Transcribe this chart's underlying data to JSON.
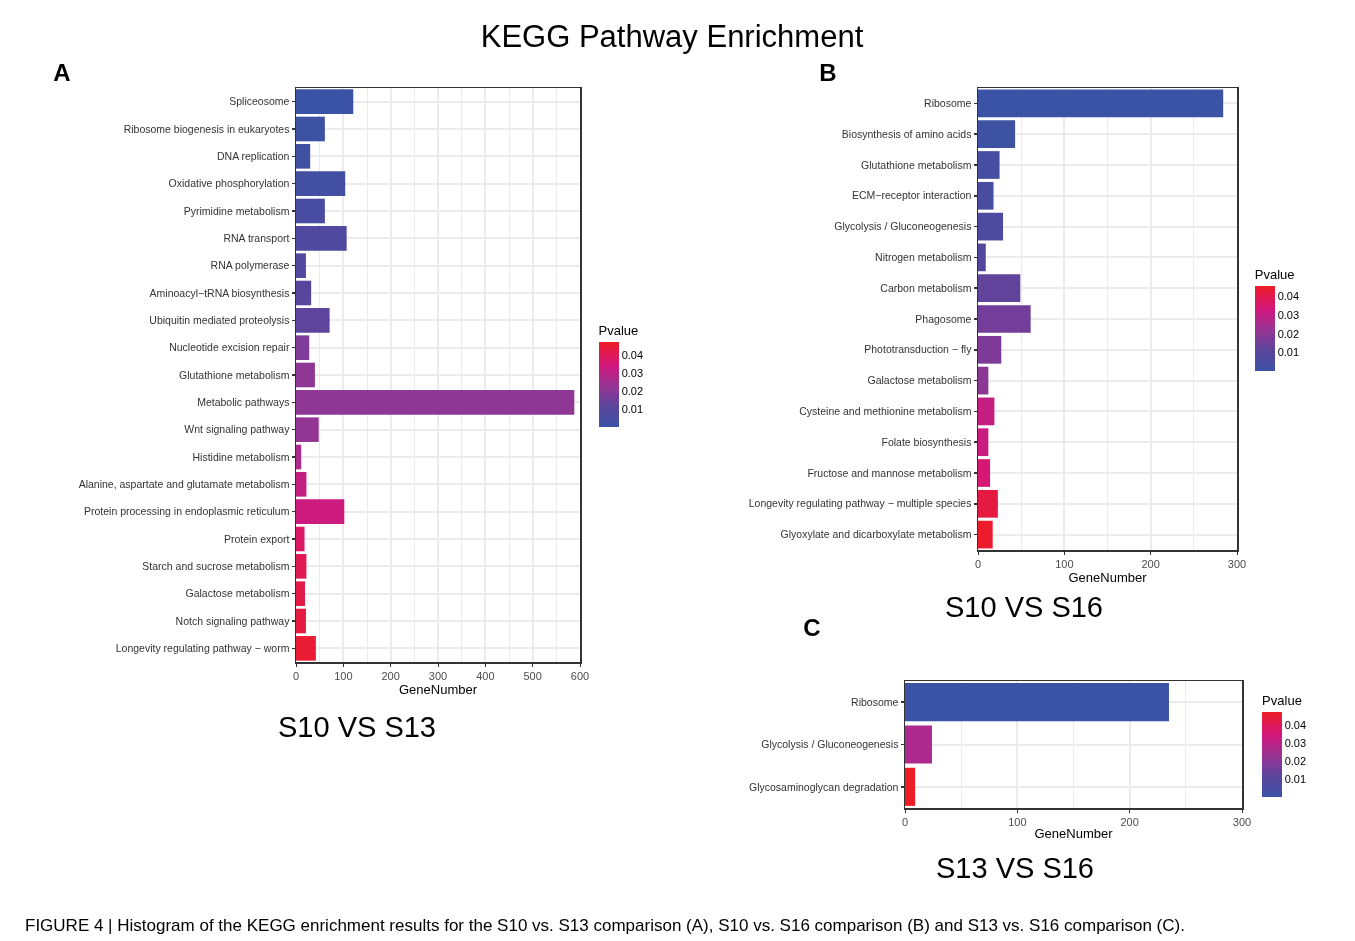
{
  "chart_data": [
    {
      "type": "bar",
      "orientation": "horizontal",
      "title": "KEGG Pathway Enrichment",
      "subtitle": "S10 VS S13",
      "annotations": [
        "A"
      ],
      "categories": [
        "Spliceosome",
        "Ribosome biogenesis in eukaryotes",
        "DNA replication",
        "Oxidative phosphorylation",
        "Pyrimidine metabolism",
        "RNA transport",
        "RNA polymerase",
        "Aminoacyl−tRNA biosynthesis",
        "Ubiquitin mediated proteolysis",
        "Nucleotide excision repair",
        "Glutathione metabolism",
        "Metabolic pathways",
        "Wnt signaling pathway",
        "Histidine metabolism",
        "Alanine, aspartate and glutamate metabolism",
        "Protein processing in endoplasmic reticulum",
        "Protein export",
        "Starch and sucrose metabolism",
        "Galactose metabolism",
        "Notch signaling pathway",
        "Longevity regulating pathway − worm"
      ],
      "values": [
        121,
        61,
        30,
        104,
        61,
        107,
        21,
        32,
        71,
        28,
        40,
        588,
        48,
        11,
        22,
        102,
        18,
        22,
        19,
        21,
        42
      ],
      "cvalues": [
        0.0,
        0.001,
        0.002,
        0.003,
        0.005,
        0.007,
        0.008,
        0.01,
        0.012,
        0.018,
        0.021,
        0.021,
        0.022,
        0.027,
        0.031,
        0.033,
        0.038,
        0.04,
        0.042,
        0.043,
        0.045
      ],
      "clabel": "Pvalue",
      "clim": [
        0,
        0.047
      ],
      "cticks": [
        0.01,
        0.02,
        0.03,
        0.04
      ],
      "xlabel": "GeneNumber",
      "xlim": [
        0,
        600
      ],
      "xticks": [
        0,
        100,
        200,
        300,
        400,
        500,
        600
      ],
      "grid": true
    },
    {
      "type": "bar",
      "orientation": "horizontal",
      "subtitle": "S10 VS S16",
      "annotations": [
        "B"
      ],
      "categories": [
        "Ribosome",
        "Biosynthesis of amino acids",
        "Glutathione metabolism",
        "ECM−receptor interaction",
        "Glycolysis / Gluconeogenesis",
        "Nitrogen metabolism",
        "Carbon metabolism",
        "Phagosome",
        "Phototransduction − fly",
        "Galactose metabolism",
        "Cysteine and methionine metabolism",
        "Folate biosynthesis",
        "Fructose and mannose metabolism",
        "Longevity regulating pathway − multiple species",
        "Glyoxylate and dicarboxylate metabolism"
      ],
      "values": [
        284,
        43,
        25,
        18,
        29,
        9,
        49,
        61,
        27,
        12,
        19,
        12,
        14,
        23,
        17
      ],
      "cvalues": [
        0.0,
        0.001,
        0.004,
        0.005,
        0.006,
        0.008,
        0.012,
        0.015,
        0.017,
        0.02,
        0.03,
        0.031,
        0.034,
        0.041,
        0.044
      ],
      "clabel": "Pvalue",
      "clim": [
        0,
        0.045
      ],
      "cticks": [
        0.01,
        0.02,
        0.03,
        0.04
      ],
      "xlabel": "GeneNumber",
      "xlim": [
        0,
        300
      ],
      "xticks": [
        0,
        100,
        200,
        300
      ],
      "grid": true
    },
    {
      "type": "bar",
      "orientation": "horizontal",
      "subtitle": "S13 VS S16",
      "annotations": [
        "C",
        "FIGURE 4 | Histogram of the KEGG enrichment results for the S10 vs. S13 comparison (A), S10 vs. S16 comparison (B) and S13 vs. S16 comparison (C)."
      ],
      "categories": [
        "Ribosome",
        "Glycolysis / Gluconeogenesis",
        "Glycosaminoglycan degradation"
      ],
      "values": [
        235,
        24,
        9
      ],
      "cvalues": [
        0.0,
        0.027,
        0.047
      ],
      "clabel": "Pvalue",
      "clim": [
        0,
        0.047
      ],
      "cticks": [
        0.01,
        0.02,
        0.03,
        0.04
      ],
      "xlabel": "GeneNumber",
      "xlim": [
        0,
        300
      ],
      "xticks": [
        0,
        100,
        200,
        300
      ],
      "grid": true
    }
  ]
}
